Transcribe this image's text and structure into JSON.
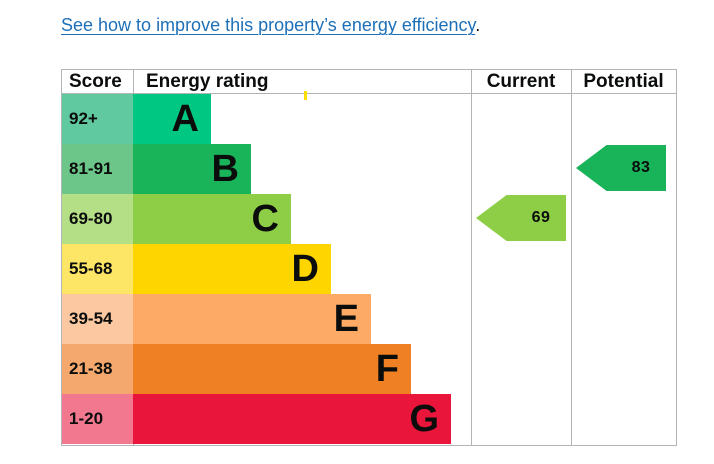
{
  "link": {
    "text": "See how to improve this property’s energy efficiency",
    "suffix": "."
  },
  "headers": {
    "score": "Score",
    "rating": "Energy rating",
    "current": "Current",
    "potential": "Potential"
  },
  "bands": [
    {
      "score": "92+",
      "letter": "A",
      "color": "#00c781",
      "score_bg": "#61c9a0"
    },
    {
      "score": "81-91",
      "letter": "B",
      "color": "#19b459",
      "score_bg": "#6dc689"
    },
    {
      "score": "69-80",
      "letter": "C",
      "color": "#8dce46",
      "score_bg": "#b5df87"
    },
    {
      "score": "55-68",
      "letter": "D",
      "color": "#ffd500",
      "score_bg": "#fde666"
    },
    {
      "score": "39-54",
      "letter": "E",
      "color": "#fcaa65",
      "score_bg": "#fbc8a1"
    },
    {
      "score": "21-38",
      "letter": "F",
      "color": "#ef8023",
      "score_bg": "#f4a86e"
    },
    {
      "score": "1-20",
      "letter": "G",
      "color": "#e9153b",
      "score_bg": "#f1788e"
    }
  ],
  "current": {
    "score": "69",
    "band": "C",
    "color": "#8dce46"
  },
  "potential": {
    "score": "83",
    "band": "B",
    "color": "#19b459"
  },
  "colors": {
    "link": "#1d70b8",
    "border": "#b1b4b6",
    "text": "#0b0c0c",
    "marker": "#ffdd00"
  }
}
